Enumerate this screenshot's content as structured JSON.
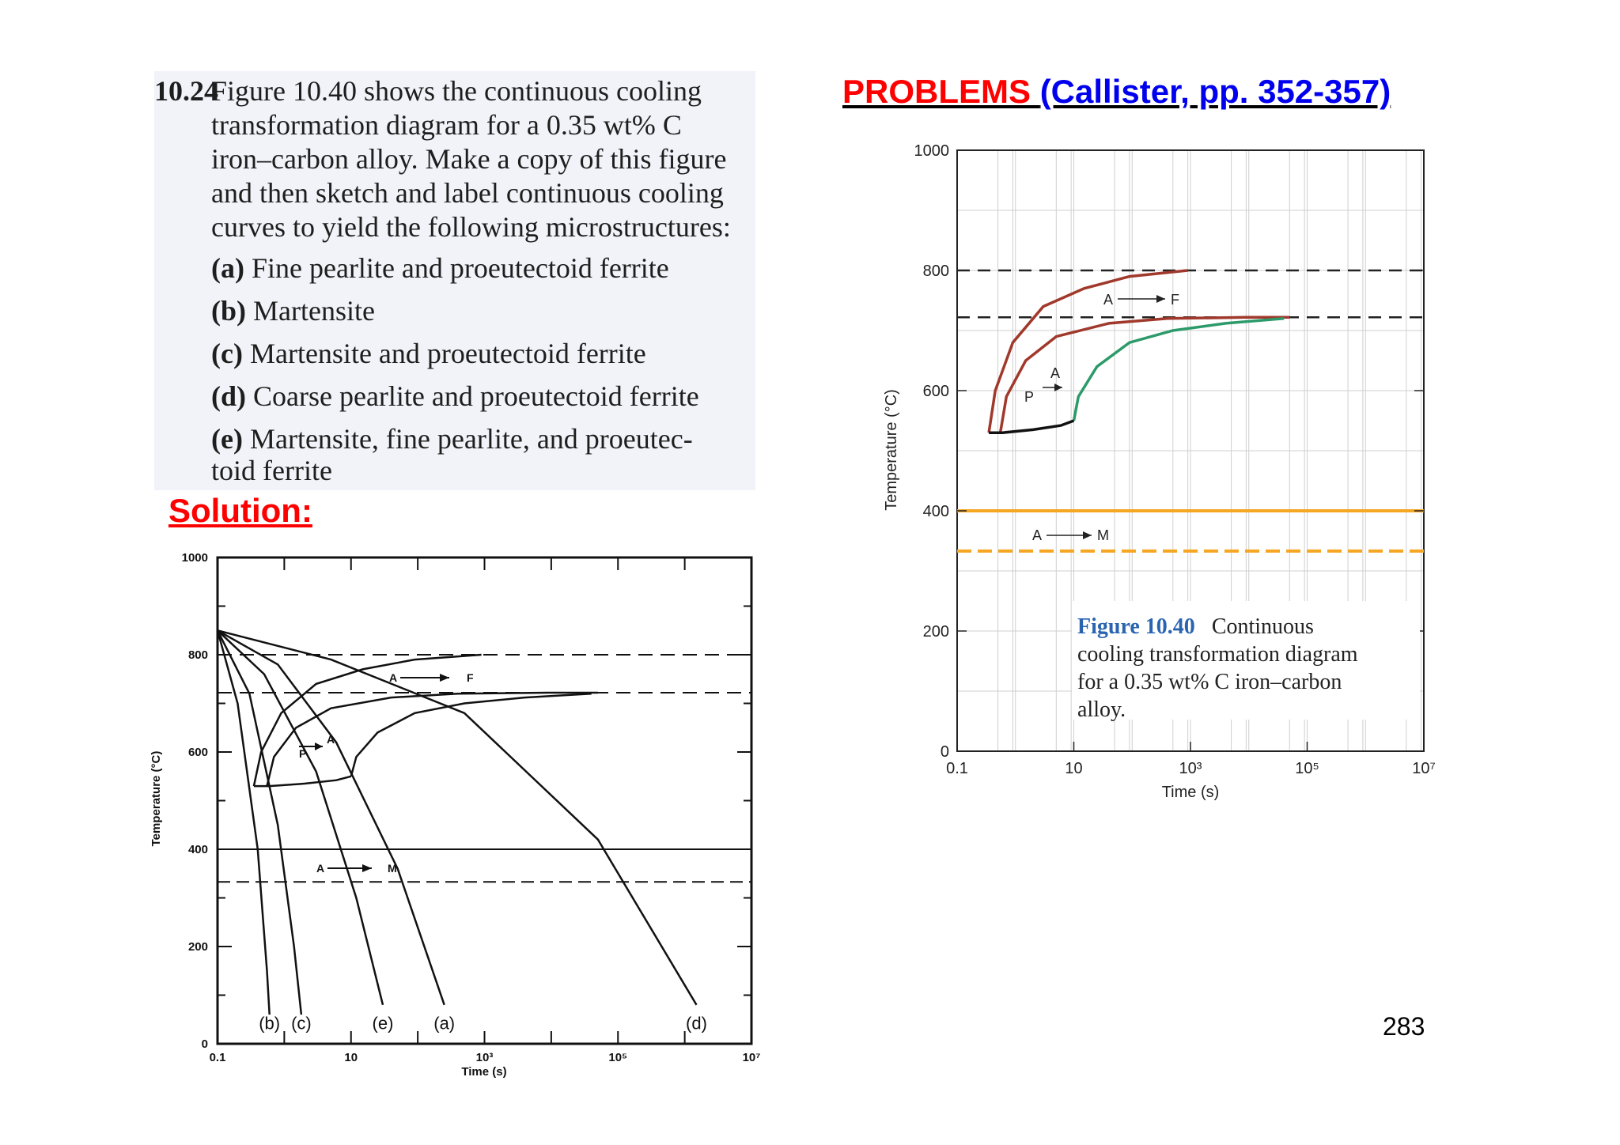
{
  "problem": {
    "number": "10.24",
    "intro_lines": [
      "Figure 10.40 shows the continuous cooling",
      "transformation diagram for a 0.35 wt% C",
      "iron–carbon alloy. Make a copy of this figure",
      "and then sketch and label continuous cooling",
      "curves to yield the following microstructures:"
    ],
    "items": [
      {
        "label": "(a)",
        "text": "Fine pearlite and proeutectoid ferrite"
      },
      {
        "label": "(b)",
        "text": "Martensite"
      },
      {
        "label": "(c)",
        "text": "Martensite and proeutectoid ferrite"
      },
      {
        "label": "(d)",
        "text": "Coarse pearlite and proeutectoid ferrite"
      },
      {
        "label": "(e)",
        "text": "Martensite, fine pearlite, and proeutec-",
        "cont": "toid ferrite"
      }
    ]
  },
  "heading": {
    "problems": "PROBLEMS",
    "source": "(Callister, pp. 352-357)"
  },
  "solution_label": "Solution:",
  "page_number": "283",
  "caption": {
    "figure": "Figure 10.40",
    "lines": [
      "Continuous",
      "cooling transformation diagram",
      "for a 0.35 wt% C iron–carbon",
      "alloy."
    ]
  },
  "colors": {
    "heading_red": "#ff0000",
    "link_blue": "#0000ee",
    "ferrite": "#a0392b",
    "pearlite": "#2c9a6a",
    "martensite": "#f5a623"
  },
  "chart_data": [
    {
      "type": "line",
      "title": "",
      "xlabel": "Time (s)",
      "ylabel": "Temperature (°C)",
      "x_scale": "log",
      "xlim": [
        0.1,
        10000000
      ],
      "ylim": [
        0,
        1000
      ],
      "x_ticks": [
        "0.1",
        "10",
        "10³",
        "10⁵",
        "10⁷"
      ],
      "y_ticks": [
        "0",
        "200",
        "400",
        "600",
        "800",
        "1000"
      ],
      "annotations": [
        "A",
        "F",
        "A",
        "P",
        "A",
        "M"
      ],
      "series": [
        {
          "x": [
            0.35,
            0.45,
            0.9,
            3,
            15,
            90,
            900
          ],
          "y": [
            530,
            600,
            680,
            740,
            770,
            790,
            800
          ]
        },
        {
          "x": [
            0.55,
            0.7,
            1.5,
            5,
            40,
            400,
            9000,
            50000
          ],
          "y": [
            530,
            590,
            650,
            690,
            712,
            720,
            722,
            722
          ]
        },
        {
          "x": [
            10,
            12,
            25,
            90,
            500,
            4000,
            40000
          ],
          "y": [
            550,
            590,
            640,
            680,
            700,
            712,
            720
          ]
        },
        {
          "x": [
            0.35,
            0.6,
            2,
            6,
            10
          ],
          "y": [
            530,
            530,
            535,
            542,
            550
          ]
        }
      ],
      "reference_lines": [
        {
          "y": 400
        },
        {
          "y": 333
        },
        {
          "y": 800
        },
        {
          "y": 722
        }
      ]
    },
    {
      "type": "line",
      "title": "",
      "xlabel": "Time (s)",
      "ylabel": "Temperature (°C)",
      "x_scale": "log",
      "xlim": [
        0.1,
        10000000
      ],
      "ylim": [
        0,
        1000
      ],
      "x_ticks": [
        "0.1",
        "10",
        "10³",
        "10⁵",
        "10⁷"
      ],
      "y_ticks": [
        "0",
        "200",
        "400",
        "600",
        "800",
        "1000"
      ],
      "annotations": [
        "A",
        "F",
        "A",
        "P",
        "A",
        "M"
      ],
      "curve_labels": [
        "(b)",
        "(c)",
        "(e)",
        "(a)",
        "(d)"
      ],
      "series": [
        {
          "name": "(b)",
          "x": [
            0.1,
            0.2,
            0.4,
            0.55,
            0.6
          ],
          "y": [
            850,
            700,
            400,
            150,
            60
          ]
        },
        {
          "name": "(c)",
          "x": [
            0.1,
            0.3,
            0.8,
            1.4,
            1.8
          ],
          "y": [
            850,
            720,
            450,
            200,
            60
          ]
        },
        {
          "name": "(e)",
          "x": [
            0.1,
            0.5,
            3,
            12,
            30
          ],
          "y": [
            850,
            760,
            560,
            300,
            80
          ]
        },
        {
          "name": "(a)",
          "x": [
            0.1,
            0.8,
            6,
            50,
            250
          ],
          "y": [
            850,
            780,
            620,
            360,
            80
          ]
        },
        {
          "name": "(d)",
          "x": [
            0.1,
            5,
            500,
            50000,
            1500000
          ],
          "y": [
            850,
            790,
            680,
            420,
            80
          ]
        }
      ]
    }
  ]
}
